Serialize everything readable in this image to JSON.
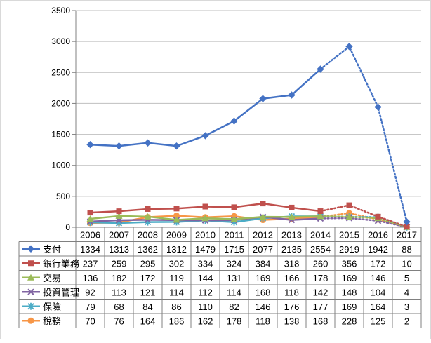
{
  "chart_data": {
    "type": "line",
    "categories": [
      "2006",
      "2007",
      "2008",
      "2009",
      "2010",
      "2011",
      "2012",
      "2013",
      "2014",
      "2015",
      "2016",
      "2017"
    ],
    "ylim": [
      0,
      3500
    ],
    "yticks": [
      0,
      500,
      1000,
      1500,
      2000,
      2500,
      3000,
      3500
    ],
    "grid": true,
    "legend": "data-table",
    "dotted_from_index": 8,
    "series": [
      {
        "name": "支付",
        "color": "#4472C4",
        "marker": "diamond",
        "values": [
          1334,
          1313,
          1362,
          1312,
          1479,
          1715,
          2077,
          2135,
          2554,
          2919,
          1942,
          88
        ],
        "display": [
          "1334",
          "1313",
          "1362",
          "1312",
          "1479",
          "1715",
          "2077",
          "2135",
          "2554",
          "2919",
          "1942",
          "88"
        ]
      },
      {
        "name": "銀行業務",
        "color": "#C0504D",
        "marker": "square",
        "values": [
          237,
          259,
          295,
          302,
          334,
          324,
          384,
          318,
          260,
          356,
          172,
          10
        ],
        "display": [
          "237",
          "259",
          "295",
          "302",
          "334",
          "324",
          "384",
          "318",
          "260",
          "356",
          "172",
          "10"
        ]
      },
      {
        "name": "交易",
        "color": "#9BBB59",
        "marker": "triangle",
        "values": [
          136,
          182,
          172,
          119,
          144,
          131,
          169,
          166,
          178,
          169,
          146,
          5
        ],
        "display": [
          "136",
          "182",
          "172",
          "119",
          "144",
          "131",
          "169",
          "166",
          "178",
          "169",
          "146",
          "5"
        ]
      },
      {
        "name": "投資管理",
        "color": "#8064A2",
        "marker": "x",
        "values": [
          92,
          113,
          121,
          114,
          112,
          114,
          168,
          118,
          142,
          148,
          104,
          4
        ],
        "display": [
          "92",
          "113",
          "121",
          "114",
          "112",
          "114",
          "168",
          "118",
          "142",
          "148",
          "104",
          "4"
        ]
      },
      {
        "name": "保險",
        "color": "#4BACC6",
        "marker": "star",
        "values": [
          79,
          68,
          84,
          86,
          110,
          82,
          146,
          176,
          177,
          169,
          164,
          3
        ],
        "display": [
          "79",
          "68",
          "84",
          "86",
          "110",
          "82",
          "146",
          "176",
          "177",
          "169",
          "164",
          "3"
        ]
      },
      {
        "name": "稅務",
        "color": "#F79646",
        "marker": "circle",
        "values": [
          70,
          76,
          164,
          186,
          162,
          178,
          118,
          138,
          168,
          228,
          125,
          2
        ],
        "display": [
          "70",
          "76",
          "164",
          "186",
          "162",
          "178",
          "118",
          "138",
          "168",
          "228",
          "125",
          "2"
        ]
      }
    ]
  }
}
